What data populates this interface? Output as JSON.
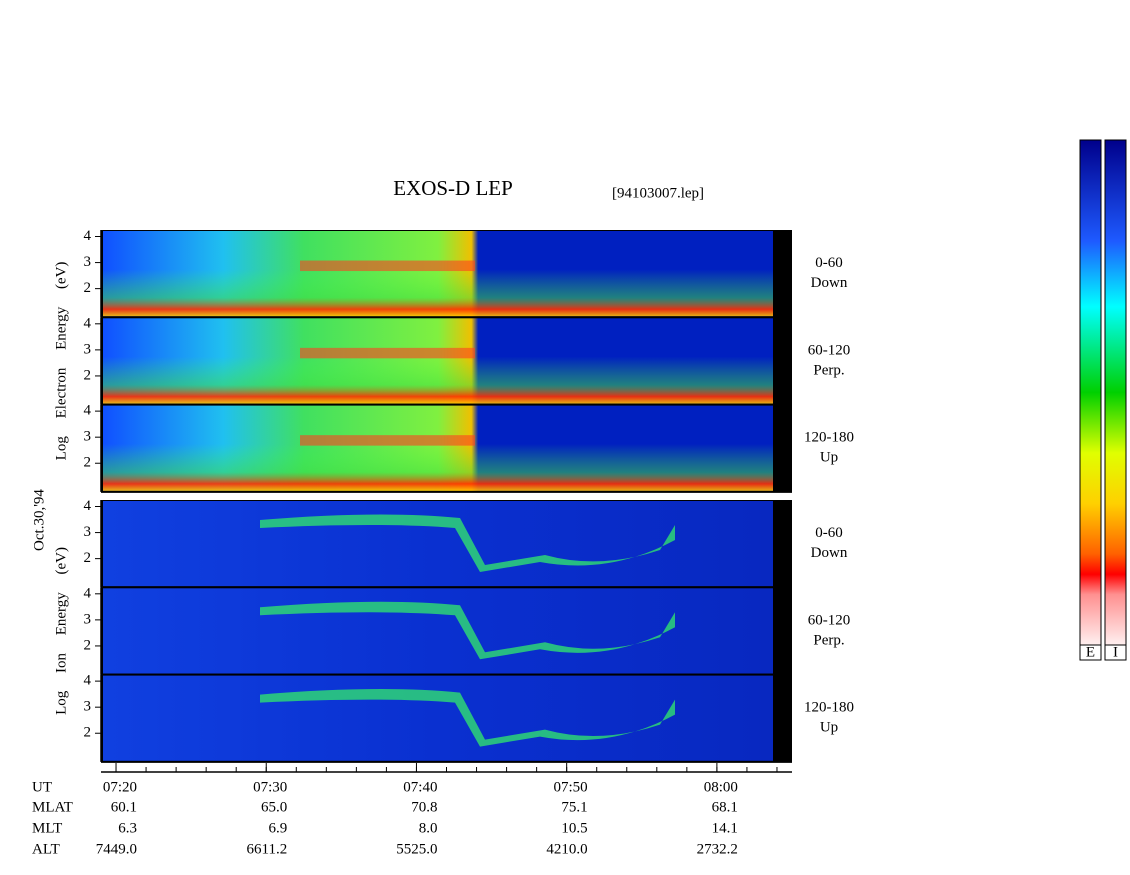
{
  "chart_data": {
    "type": "spectrogram",
    "title": "EXOS-D LEP",
    "file_label": "[94103007.lep]",
    "date_label": "Oct.30,'94",
    "xlim": [
      "07:19",
      "08:05"
    ],
    "xticks": [
      "07:20",
      "07:30",
      "07:40",
      "07:50",
      "08:00"
    ],
    "groups": [
      {
        "species": "electron",
        "ylabel": "Log Electron Energy (eV)",
        "panels": [
          {
            "label": "0-60",
            "sublabel": "Down",
            "ylim": [
              0.9,
              4.25
            ],
            "yticks": [
              2,
              3,
              4
            ]
          },
          {
            "label": "60-120",
            "sublabel": "Perp.",
            "ylim": [
              0.9,
              4.25
            ],
            "yticks": [
              2,
              3,
              4
            ]
          },
          {
            "label": "120-180",
            "sublabel": "Up",
            "ylim": [
              0.9,
              4.25
            ],
            "yticks": [
              2,
              3,
              4
            ]
          }
        ]
      },
      {
        "species": "ion",
        "ylabel": "Log Ion Energy (eV)",
        "panels": [
          {
            "label": "0-60",
            "sublabel": "Down",
            "ylim": [
              0.9,
              4.25
            ],
            "yticks": [
              2,
              3,
              4
            ]
          },
          {
            "label": "60-120",
            "sublabel": "Perp.",
            "ylim": [
              0.9,
              4.25
            ],
            "yticks": [
              2,
              3,
              4
            ]
          },
          {
            "label": "120-180",
            "sublabel": "Up",
            "ylim": [
              0.9,
              4.25
            ],
            "yticks": [
              2,
              3,
              4
            ]
          }
        ]
      }
    ],
    "ephemeris": [
      {
        "name": "UT",
        "values": [
          "07:20",
          "07:30",
          "07:40",
          "07:50",
          "08:00"
        ]
      },
      {
        "name": "MLAT",
        "values": [
          "60.1",
          "65.0",
          "70.8",
          "75.1",
          "68.1"
        ]
      },
      {
        "name": "MLT",
        "values": [
          "6.3",
          "6.9",
          "8.0",
          "10.5",
          "14.1"
        ]
      },
      {
        "name": "ALT",
        "values": [
          "7449.0",
          "6611.2",
          "5525.0",
          "4210.0",
          "2732.2"
        ]
      }
    ],
    "colorbars": [
      "E",
      "I"
    ]
  }
}
